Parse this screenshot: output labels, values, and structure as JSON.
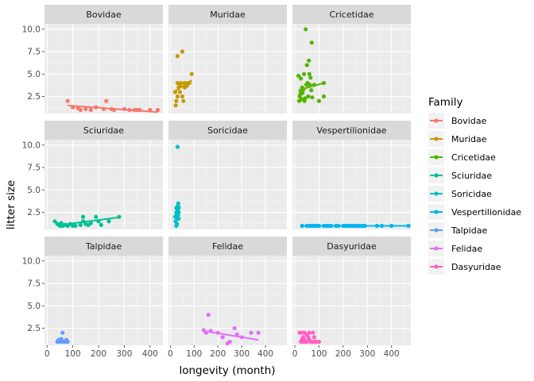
{
  "chart_data": {
    "type": "scatter",
    "facet": true,
    "xlabel": "longevity (month)",
    "ylabel": "litter size",
    "x_ticks": [
      0,
      100,
      200,
      300,
      400
    ],
    "y_ticks": [
      2.5,
      5.0,
      7.5,
      10.0
    ],
    "y_tick_labels": [
      "2.5",
      "5.0",
      "7.5",
      "10.0"
    ],
    "trendline": "linear",
    "legend": {
      "title": "Family",
      "placement": "right"
    },
    "panels": [
      {
        "name": "Bovidae",
        "color": "#F8766D",
        "xlim": [
          -10,
          450
        ],
        "points": [
          [
            80,
            2
          ],
          [
            100,
            1.3
          ],
          [
            120,
            1.2
          ],
          [
            130,
            1
          ],
          [
            150,
            1.1
          ],
          [
            170,
            1
          ],
          [
            190,
            1.3
          ],
          [
            220,
            1.1
          ],
          [
            230,
            2
          ],
          [
            250,
            1.1
          ],
          [
            260,
            1
          ],
          [
            300,
            1.1
          ],
          [
            320,
            1
          ],
          [
            340,
            1
          ],
          [
            350,
            1
          ],
          [
            360,
            1
          ],
          [
            400,
            1
          ],
          [
            430,
            1
          ]
        ],
        "fit": [
          [
            80,
            1.5
          ],
          [
            430,
            0.75
          ]
        ]
      },
      {
        "name": "Muridae",
        "color": "#C49A00",
        "xlim": [
          -8,
          490
        ],
        "points": [
          [
            20,
            3
          ],
          [
            22,
            1.5
          ],
          [
            25,
            2
          ],
          [
            30,
            2.5
          ],
          [
            30,
            4
          ],
          [
            30,
            7
          ],
          [
            35,
            3.5
          ],
          [
            40,
            3
          ],
          [
            40,
            3.8
          ],
          [
            45,
            4
          ],
          [
            50,
            7.5
          ],
          [
            50,
            2.5
          ],
          [
            55,
            2
          ],
          [
            60,
            3.5
          ],
          [
            60,
            4
          ],
          [
            70,
            3.7
          ],
          [
            75,
            4
          ],
          [
            80,
            4
          ],
          [
            90,
            5
          ]
        ],
        "fit": [
          [
            20,
            3.1
          ],
          [
            90,
            4.3
          ]
        ]
      },
      {
        "name": "Cricetidae",
        "color": "#53B400",
        "xlim": [
          -10,
          480
        ],
        "points": [
          [
            15,
            4.8
          ],
          [
            18,
            2
          ],
          [
            20,
            2.5
          ],
          [
            22,
            2.7
          ],
          [
            25,
            3
          ],
          [
            25,
            4.5
          ],
          [
            28,
            2.2
          ],
          [
            30,
            3.5
          ],
          [
            32,
            2.9
          ],
          [
            35,
            3.3
          ],
          [
            38,
            5
          ],
          [
            40,
            2
          ],
          [
            42,
            2.3
          ],
          [
            45,
            10
          ],
          [
            48,
            3.8
          ],
          [
            50,
            6
          ],
          [
            52,
            4
          ],
          [
            55,
            2.5
          ],
          [
            58,
            6.5
          ],
          [
            60,
            5
          ],
          [
            62,
            3.8
          ],
          [
            65,
            4.6
          ],
          [
            68,
            3.2
          ],
          [
            70,
            8.5
          ],
          [
            72,
            2.4
          ],
          [
            80,
            3.8
          ],
          [
            100,
            2
          ],
          [
            120,
            2.5
          ],
          [
            120,
            4
          ]
        ],
        "fit": [
          [
            15,
            3.2
          ],
          [
            120,
            4.0
          ]
        ]
      },
      {
        "name": "Sciuridae",
        "color": "#00C094",
        "xlim": [
          -10,
          450
        ],
        "points": [
          [
            30,
            1.5
          ],
          [
            40,
            1.2
          ],
          [
            50,
            1
          ],
          [
            55,
            1.3
          ],
          [
            60,
            1
          ],
          [
            70,
            1.1
          ],
          [
            80,
            1
          ],
          [
            90,
            1.2
          ],
          [
            100,
            1
          ],
          [
            110,
            1
          ],
          [
            130,
            1.1
          ],
          [
            140,
            1.5
          ],
          [
            140,
            2
          ],
          [
            150,
            1.2
          ],
          [
            160,
            1.1
          ],
          [
            170,
            1.3
          ],
          [
            190,
            2
          ],
          [
            200,
            1.5
          ],
          [
            210,
            1.1
          ],
          [
            240,
            1.5
          ],
          [
            280,
            2
          ]
        ],
        "fit": [
          [
            40,
            1.05
          ],
          [
            280,
            1.95
          ]
        ]
      },
      {
        "name": "Soricidae",
        "color": "#00BFC4",
        "xlim": [
          -8,
          490
        ],
        "points": [
          [
            20,
            2
          ],
          [
            22,
            1.5
          ],
          [
            25,
            1
          ],
          [
            25,
            2.5
          ],
          [
            25,
            3
          ],
          [
            28,
            2
          ],
          [
            28,
            1.2
          ],
          [
            30,
            9.8
          ],
          [
            30,
            2.8
          ],
          [
            30,
            1.8
          ],
          [
            32,
            3.2
          ],
          [
            32,
            2.2
          ],
          [
            33,
            3.5
          ],
          [
            35,
            2.5
          ],
          [
            35,
            1.8
          ],
          [
            35,
            3
          ]
        ],
        "fit": [
          [
            20,
            2.1
          ],
          [
            35,
            3.6
          ]
        ]
      },
      {
        "name": "Vespertilionidae",
        "color": "#00B6EB",
        "xlim": [
          -10,
          480
        ],
        "points": [
          [
            30,
            1
          ],
          [
            50,
            1
          ],
          [
            60,
            1
          ],
          [
            70,
            1
          ],
          [
            80,
            1
          ],
          [
            90,
            1
          ],
          [
            100,
            1
          ],
          [
            120,
            1
          ],
          [
            130,
            1
          ],
          [
            140,
            1
          ],
          [
            150,
            1
          ],
          [
            170,
            1
          ],
          [
            180,
            1
          ],
          [
            200,
            1
          ],
          [
            210,
            1
          ],
          [
            220,
            1
          ],
          [
            230,
            1
          ],
          [
            240,
            1
          ],
          [
            250,
            1
          ],
          [
            260,
            1
          ],
          [
            270,
            1
          ],
          [
            280,
            1
          ],
          [
            290,
            1
          ],
          [
            340,
            1
          ],
          [
            360,
            1
          ],
          [
            400,
            1
          ],
          [
            470,
            1
          ]
        ],
        "fit": [
          [
            30,
            1
          ],
          [
            470,
            1
          ]
        ]
      },
      {
        "name": "Talpidae",
        "color": "#619CFF",
        "xlim": [
          -10,
          450
        ],
        "points": [
          [
            40,
            1
          ],
          [
            45,
            1.2
          ],
          [
            50,
            1
          ],
          [
            55,
            1.3
          ],
          [
            60,
            1
          ],
          [
            60,
            2
          ],
          [
            65,
            1
          ],
          [
            70,
            1
          ],
          [
            75,
            1.2
          ],
          [
            80,
            1
          ]
        ],
        "fit": null
      },
      {
        "name": "Felidae",
        "color": "#DF70F8",
        "xlim": [
          -8,
          490
        ],
        "points": [
          [
            140,
            2.3
          ],
          [
            150,
            2
          ],
          [
            160,
            4
          ],
          [
            170,
            2.2
          ],
          [
            200,
            2
          ],
          [
            220,
            1.5
          ],
          [
            240,
            0.8
          ],
          [
            250,
            1
          ],
          [
            270,
            2.5
          ],
          [
            280,
            1.8
          ],
          [
            300,
            1.5
          ],
          [
            340,
            2
          ],
          [
            370,
            2
          ]
        ],
        "fit": [
          [
            140,
            2.2
          ],
          [
            370,
            1.2
          ]
        ]
      },
      {
        "name": "Dasyuridae",
        "color": "#FF61C3",
        "xlim": [
          -10,
          480
        ],
        "points": [
          [
            20,
            2
          ],
          [
            25,
            1
          ],
          [
            30,
            1.3
          ],
          [
            30,
            2
          ],
          [
            35,
            1.5
          ],
          [
            35,
            1
          ],
          [
            40,
            2
          ],
          [
            40,
            1.2
          ],
          [
            45,
            1
          ],
          [
            50,
            1.8
          ],
          [
            50,
            1
          ],
          [
            55,
            1.5
          ],
          [
            60,
            2
          ],
          [
            60,
            1.2
          ],
          [
            65,
            1
          ],
          [
            70,
            1
          ],
          [
            75,
            2
          ],
          [
            75,
            1
          ],
          [
            80,
            1.5
          ],
          [
            85,
            1
          ],
          [
            90,
            1
          ],
          [
            100,
            1
          ]
        ],
        "fit": null
      }
    ],
    "ylim": [
      0.6,
      10.6
    ]
  }
}
